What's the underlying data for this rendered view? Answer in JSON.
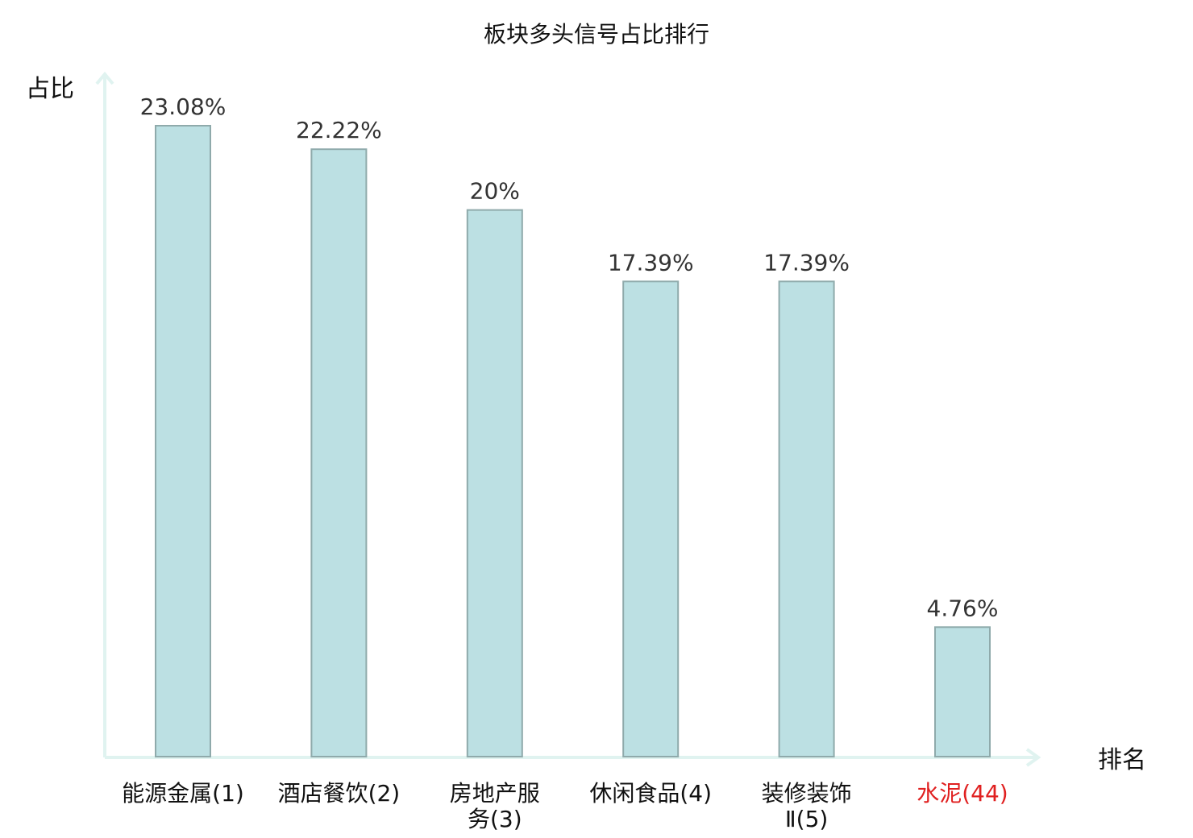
{
  "chart_data": {
    "type": "bar",
    "title": "板块多头信号占比排行",
    "ylabel": "占比",
    "xlabel": "排名",
    "categories": [
      [
        "能源金属(1)"
      ],
      [
        "酒店餐饮(2)"
      ],
      [
        "房地产服",
        "务(3)"
      ],
      [
        "休闲食品(4)"
      ],
      [
        "装修装饰",
        "Ⅱ(5)"
      ],
      [
        "水泥(44)"
      ]
    ],
    "values": [
      23.08,
      22.22,
      20,
      17.39,
      17.39,
      4.76
    ],
    "value_labels": [
      "23.08%",
      "22.22%",
      "20%",
      "17.39%",
      "17.39%",
      "4.76%"
    ],
    "highlight_index": 5,
    "ylim": [
      0,
      23.08
    ],
    "grid": false,
    "legend": "none"
  },
  "colors": {
    "bar_fill": "#bce0e3",
    "bar_stroke": "#8faaab",
    "axis": "#e0f3f0",
    "text": "#111111",
    "value_label": "#333333",
    "highlight": "#e02020"
  }
}
